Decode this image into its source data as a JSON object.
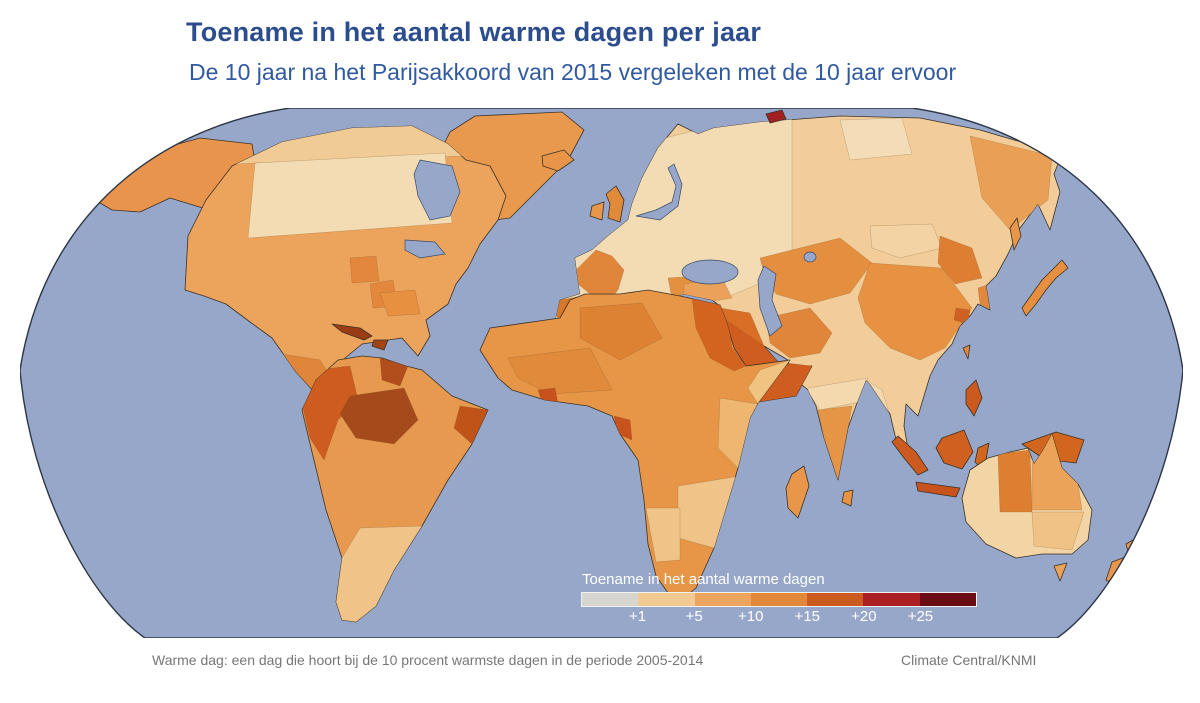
{
  "header": {
    "title": "Toename in het aantal warme dagen per jaar",
    "subtitle": "De 10 jaar na het Parijsakkoord van 2015 vergeleken met de 10 jaar ervoor",
    "title_color": "#2c4d8d",
    "subtitle_color": "#30599f"
  },
  "legend": {
    "title": "Toename in het aantal warme dagen",
    "ticks": [
      "+1",
      "+5",
      "+10",
      "+15",
      "+20",
      "+25"
    ],
    "colors": [
      "#d6d5cf",
      "#f2c990",
      "#eca55e",
      "#e1883a",
      "#cb5a1e",
      "#ab1f24",
      "#6b0d15"
    ],
    "text_color": "#ffffff"
  },
  "map": {
    "ocean_color": "#96a7ca",
    "outline_color": "#2e3747",
    "note": "choropleth world map, Robinson projection"
  },
  "footer": {
    "note": "Warme dag: een dag die hoort bij de 10 procent warmste dagen in de periode 2005-2014",
    "credit": "Climate Central/KNMI",
    "text_color": "#767676"
  }
}
